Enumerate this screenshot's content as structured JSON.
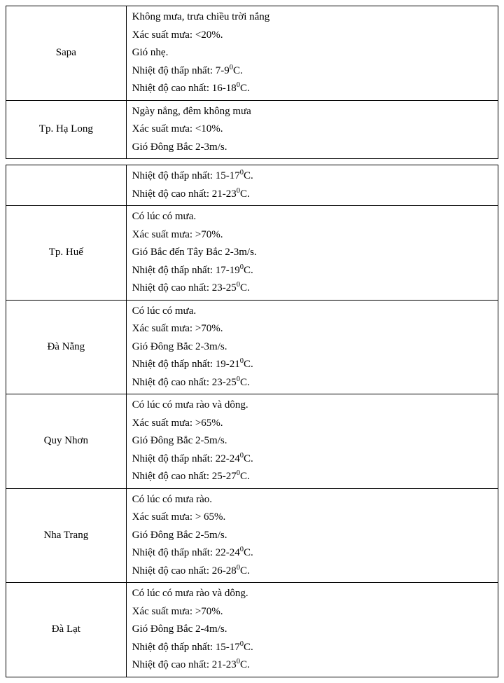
{
  "table1": {
    "rows": [
      {
        "location": "Sapa",
        "lines": [
          "Không mưa, trưa chiều trời nắng",
          "Xác suất mưa: <20%.",
          "Gió nhẹ.",
          "Nhiệt độ thấp nhất: 7-9⁰C.",
          "Nhiệt độ cao nhất: 16-18⁰C."
        ]
      },
      {
        "location": "Tp. Hạ Long",
        "lines": [
          "Ngày nắng, đêm không mưa",
          "Xác suất mưa: <10%.",
          "Gió Đông Bắc 2-3m/s."
        ]
      }
    ]
  },
  "table2": {
    "rows": [
      {
        "location": "",
        "lines": [
          "Nhiệt độ thấp nhất: 15-17⁰C.",
          "Nhiệt độ cao nhất: 21-23⁰C."
        ]
      },
      {
        "location": "Tp. Huế",
        "lines": [
          "Có lúc có mưa.",
          "Xác suất mưa: >70%.",
          "Gió Bắc đến Tây Bắc 2-3m/s.",
          "Nhiệt độ thấp nhất: 17-19⁰C.",
          "Nhiệt độ cao nhất: 23-25⁰C."
        ]
      },
      {
        "location": "Đà Nẵng",
        "lines": [
          "Có lúc có mưa.",
          "Xác suất mưa: >70%.",
          "Gió Đông Bắc 2-3m/s.",
          "Nhiệt độ thấp nhất: 19-21⁰C.",
          "Nhiệt độ cao nhất: 23-25⁰C."
        ]
      },
      {
        "location": "Quy Nhơn",
        "lines": [
          "Có lúc có mưa rào và dông.",
          "Xác suất mưa: >65%.",
          "Gió Đông Bắc 2-5m/s.",
          "Nhiệt độ thấp nhất: 22-24⁰C.",
          "Nhiệt độ cao nhất: 25-27⁰C."
        ]
      },
      {
        "location": "Nha Trang",
        "lines": [
          "Có lúc có mưa rào.",
          "Xác suất mưa: > 65%.",
          "Gió Đông Bắc 2-5m/s.",
          "Nhiệt độ thấp nhất: 22-24⁰C.",
          "Nhiệt độ cao nhất: 26-28⁰C."
        ]
      },
      {
        "location": "Đà Lạt",
        "lines": [
          "Có lúc có mưa rào và dông.",
          "Xác suất mưa: >70%.",
          "Gió Đông Bắc 2-4m/s.",
          "Nhiệt độ thấp nhất: 15-17⁰C.",
          "Nhiệt độ cao nhất: 21-23⁰C."
        ]
      }
    ]
  }
}
